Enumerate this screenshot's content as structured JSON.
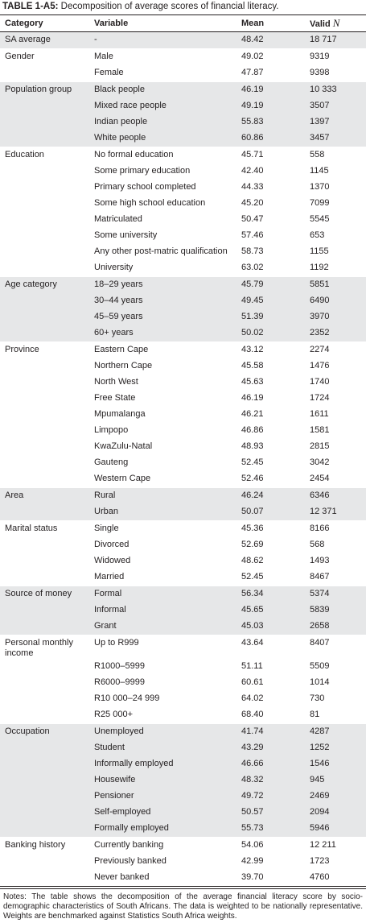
{
  "title": {
    "label": "TABLE 1-A5:",
    "text": "Decomposition of average scores of financial literacy."
  },
  "header": [
    "Category",
    "Variable",
    "Mean",
    {
      "text": "Valid",
      "symbol": "N"
    }
  ],
  "groups": [
    {
      "category": "SA average",
      "rows": [
        [
          "-",
          "48.42",
          "18 717"
        ]
      ]
    },
    {
      "category": "Gender",
      "rows": [
        [
          "Male",
          "49.02",
          "9319"
        ],
        [
          "Female",
          "47.87",
          "9398"
        ]
      ]
    },
    {
      "category": "Population group",
      "rows": [
        [
          "Black people",
          "46.19",
          "10 333"
        ],
        [
          "Mixed race people",
          "49.19",
          "3507"
        ],
        [
          "Indian people",
          "55.83",
          "1397"
        ],
        [
          "White people",
          "60.86",
          "3457"
        ]
      ]
    },
    {
      "category": "Education",
      "rows": [
        [
          "No formal education",
          "45.71",
          "558"
        ],
        [
          "Some primary education",
          "42.40",
          "1145"
        ],
        [
          "Primary school completed",
          "44.33",
          "1370"
        ],
        [
          "Some high school education",
          "45.20",
          "7099"
        ],
        [
          "Matriculated",
          "50.47",
          "5545"
        ],
        [
          "Some university",
          "57.46",
          "653"
        ],
        [
          "Any other post-matric qualification",
          "58.73",
          "1155"
        ],
        [
          "University",
          "63.02",
          "1192"
        ]
      ]
    },
    {
      "category": "Age category",
      "rows": [
        [
          "18–29 years",
          "45.79",
          "5851"
        ],
        [
          "30–44 years",
          "49.45",
          "6490"
        ],
        [
          "45–59 years",
          "51.39",
          "3970"
        ],
        [
          "60+ years",
          "50.02",
          "2352"
        ]
      ]
    },
    {
      "category": "Province",
      "rows": [
        [
          "Eastern Cape",
          "43.12",
          "2274"
        ],
        [
          "Northern Cape",
          "45.58",
          "1476"
        ],
        [
          "North West",
          "45.63",
          "1740"
        ],
        [
          "Free State",
          "46.19",
          "1724"
        ],
        [
          "Mpumalanga",
          "46.21",
          "1611"
        ],
        [
          "Limpopo",
          "46.86",
          "1581"
        ],
        [
          "KwaZulu-Natal",
          "48.93",
          "2815"
        ],
        [
          "Gauteng",
          "52.45",
          "3042"
        ],
        [
          "Western Cape",
          "52.46",
          "2454"
        ]
      ]
    },
    {
      "category": "Area",
      "rows": [
        [
          "Rural",
          "46.24",
          "6346"
        ],
        [
          "Urban",
          "50.07",
          "12 371"
        ]
      ]
    },
    {
      "category": "Marital status",
      "rows": [
        [
          "Single",
          "45.36",
          "8166"
        ],
        [
          "Divorced",
          "52.69",
          "568"
        ],
        [
          "Widowed",
          "48.62",
          "1493"
        ],
        [
          "Married",
          "52.45",
          "8467"
        ]
      ]
    },
    {
      "category": "Source of money",
      "rows": [
        [
          "Formal",
          "56.34",
          "5374"
        ],
        [
          "Informal",
          "45.65",
          "5839"
        ],
        [
          "Grant",
          "45.03",
          "2658"
        ]
      ]
    },
    {
      "category": "Personal monthly income",
      "rows": [
        [
          "Up to R999",
          "43.64",
          "8407"
        ],
        [
          "R1000–5999",
          "51.11",
          "5509"
        ],
        [
          "R6000–9999",
          "60.61",
          "1014"
        ],
        [
          "R10 000–24 999",
          "64.02",
          "730"
        ],
        [
          "R25 000+",
          "68.40",
          "81"
        ]
      ]
    },
    {
      "category": "Occupation",
      "rows": [
        [
          "Unemployed",
          "41.74",
          "4287"
        ],
        [
          "Student",
          "43.29",
          "1252"
        ],
        [
          "Informally employed",
          "46.66",
          "1546"
        ],
        [
          "Housewife",
          "48.32",
          "945"
        ],
        [
          "Pensioner",
          "49.72",
          "2469"
        ],
        [
          "Self-employed",
          "50.57",
          "2094"
        ],
        [
          "Formally employed",
          "55.73",
          "5946"
        ]
      ]
    },
    {
      "category": "Banking history",
      "rows": [
        [
          "Currently banking",
          "54.06",
          "12 211"
        ],
        [
          "Previously banked",
          "42.99",
          "1723"
        ],
        [
          "Never banked",
          "39.70",
          "4760"
        ]
      ]
    }
  ],
  "notes": "Notes: The table shows the decomposition of the average financial literacy score by socio-demographic characteristics of South Africans. The data is weighted to be nationally representative. Weights are benchmarked against Statistics South Africa weights."
}
